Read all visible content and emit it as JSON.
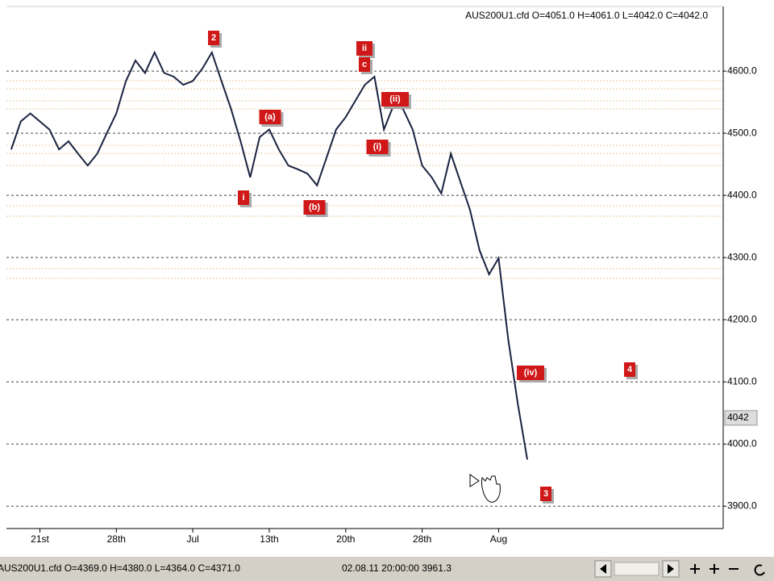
{
  "chart_data": {
    "type": "line",
    "header": "AUS200U1.cfd O=4051.0 H=4061.0 L=4042.0 C=4042.0",
    "status": "AUS200U1.cfd O=4369.0 H=4380.0 L=4364.0 C=4371.0",
    "status_time": "02.08.11 20:00:00 3961.3",
    "categories": [
      null,
      null,
      null,
      "21st",
      null,
      null,
      null,
      null,
      null,
      null,
      null,
      "28th",
      null,
      null,
      null,
      null,
      null,
      null,
      null,
      "Jul",
      null,
      null,
      null,
      null,
      null,
      null,
      null,
      "13th",
      null,
      null,
      null,
      null,
      null,
      null,
      null,
      "20th",
      null,
      null,
      null,
      null,
      null,
      null,
      null,
      "28th",
      null,
      null,
      null,
      null,
      null,
      null,
      null,
      "Aug",
      null,
      null,
      null,
      null,
      null,
      null,
      null,
      null,
      null,
      null,
      null,
      null,
      null,
      null,
      null,
      null,
      null,
      null,
      null,
      null,
      null,
      null,
      null
    ],
    "series": [
      {
        "color": "#1a2240",
        "values": [
          4474,
          4519,
          4532,
          4519,
          4506,
          4474,
          4487,
          4467,
          4448,
          4467,
          4500,
          4532,
          4584,
          4617,
          4597,
          4630,
          4597,
          4591,
          4578,
          4584,
          4604,
          4630,
          4584,
          4539,
          4487,
          4429,
          4494,
          4506,
          4474,
          4448,
          4442,
          4435,
          4416,
          4461,
          4506,
          4526,
          4552,
          4578,
          4591,
          4506,
          4545,
          4539,
          4506,
          4448,
          4429,
          4403,
          4467,
          4422,
          4377,
          4312,
          4273,
          4299,
          4169,
          4065,
          3975,
          null,
          null,
          null,
          null,
          null,
          null,
          null,
          null,
          null,
          null,
          null,
          null,
          null,
          null,
          null,
          null,
          null,
          null,
          null,
          null
        ]
      }
    ],
    "ylim": [
      3864,
      4704
    ],
    "yticks": [
      {
        "value": 3900,
        "label": "3900.0"
      },
      {
        "value": 4000,
        "label": "4000.0"
      },
      {
        "value": 4100,
        "label": "4100.0"
      },
      {
        "value": 4200,
        "label": "4200.0"
      },
      {
        "value": 4300,
        "label": "4300.0"
      },
      {
        "value": 4400,
        "label": "4400.0"
      },
      {
        "value": 4500,
        "label": "4500.0"
      },
      {
        "value": 4600,
        "label": "4600.0"
      }
    ],
    "grid": true,
    "last_price": 4042,
    "annotations": [
      "2",
      "i",
      "(a)",
      "(b)",
      "ii",
      "c",
      "(i)",
      "(ii)",
      "(iv)",
      "4",
      "3"
    ]
  }
}
